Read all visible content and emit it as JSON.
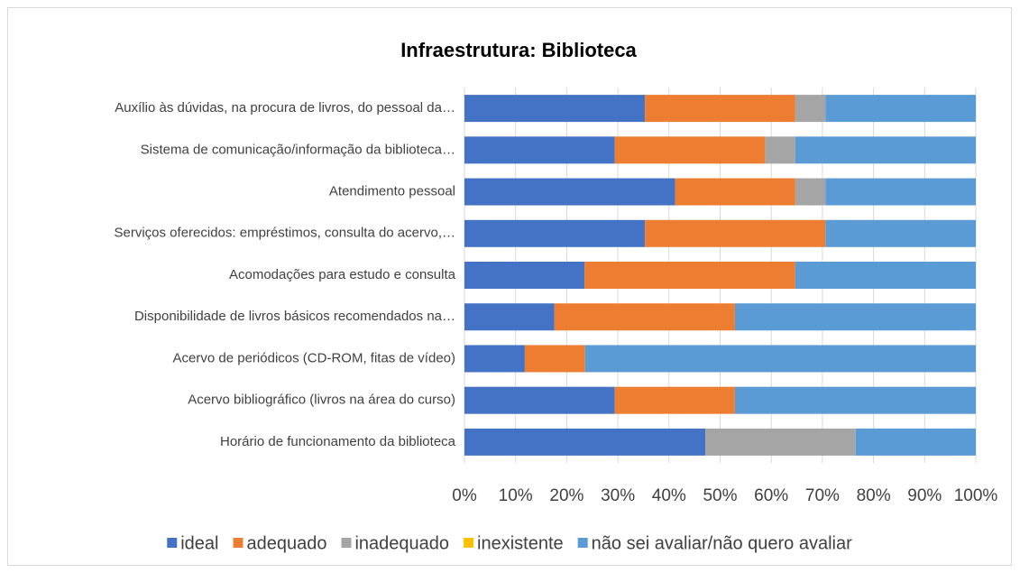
{
  "chart_data": {
    "type": "stacked_barh",
    "title": "Infraestrutura: Biblioteca",
    "categories": [
      "Auxílio às dúvidas, na procura de livros, do pessoal da…",
      "Sistema de comunicação/informação da biblioteca…",
      "Atendimento pessoal",
      "Serviços oferecidos: empréstimos, consulta do acervo,…",
      "Acomodações para estudo e consulta",
      "Disponibilidade de livros básicos recomendados na…",
      "Acervo de periódicos (CD-ROM, fitas de vídeo)",
      "Acervo bibliográfico (livros na área do curso)",
      "Horário de funcionamento da biblioteca"
    ],
    "series": [
      {
        "name": "ideal",
        "color": "#4472c4",
        "values": [
          35.3,
          29.4,
          41.2,
          35.3,
          23.5,
          17.6,
          11.8,
          29.4,
          47.1
        ]
      },
      {
        "name": "adequado",
        "color": "#ed7d31",
        "values": [
          29.4,
          29.4,
          23.5,
          35.3,
          41.2,
          35.3,
          11.8,
          23.5,
          0
        ]
      },
      {
        "name": "inadequado",
        "color": "#a5a5a5",
        "values": [
          5.9,
          5.9,
          5.9,
          0,
          0,
          0,
          0,
          0,
          29.4
        ]
      },
      {
        "name": "inexistente",
        "color": "#ffc000",
        "values": [
          0,
          0,
          0,
          0,
          0,
          0,
          0,
          0,
          0
        ]
      },
      {
        "name": "não sei avaliar/não quero avaliar",
        "color": "#5b9bd5",
        "values": [
          29.4,
          35.3,
          29.4,
          29.4,
          35.3,
          47.1,
          76.4,
          47.1,
          23.5
        ]
      }
    ],
    "xlim": [
      0,
      100
    ],
    "xticks": [
      {
        "value": 0,
        "label": "0%"
      },
      {
        "value": 10,
        "label": "10%"
      },
      {
        "value": 20,
        "label": "20%"
      },
      {
        "value": 30,
        "label": "30%"
      },
      {
        "value": 40,
        "label": "40%"
      },
      {
        "value": 50,
        "label": "50%"
      },
      {
        "value": 60,
        "label": "60%"
      },
      {
        "value": 70,
        "label": "70%"
      },
      {
        "value": 80,
        "label": "80%"
      },
      {
        "value": 90,
        "label": "90%"
      },
      {
        "value": 100,
        "label": "100%"
      }
    ],
    "grid": true,
    "legend": "bottom"
  }
}
